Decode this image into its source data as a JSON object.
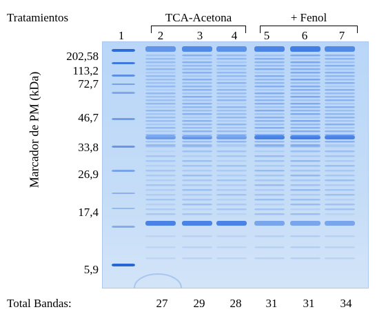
{
  "header": {
    "treatments_label": "Tratamientos",
    "group1_label": "TCA-Acetona",
    "group2_label": "+ Fenol"
  },
  "lanes": [
    "1",
    "2",
    "3",
    "4",
    "5",
    "6",
    "7"
  ],
  "axis_label": "Marcador de PM (kDa)",
  "markers": [
    "202,58",
    "113,2",
    "72,7",
    "46,7",
    "33,8",
    "26,9",
    "17,4",
    "5,9"
  ],
  "totals": {
    "label": "Total Bandas:",
    "values": [
      "27",
      "29",
      "28",
      "31",
      "31",
      "34"
    ]
  },
  "colors": {
    "gel_background": "#c4dcf7",
    "band_color": "#2a6be0",
    "marker_band_color": "#1f5fd6"
  }
}
